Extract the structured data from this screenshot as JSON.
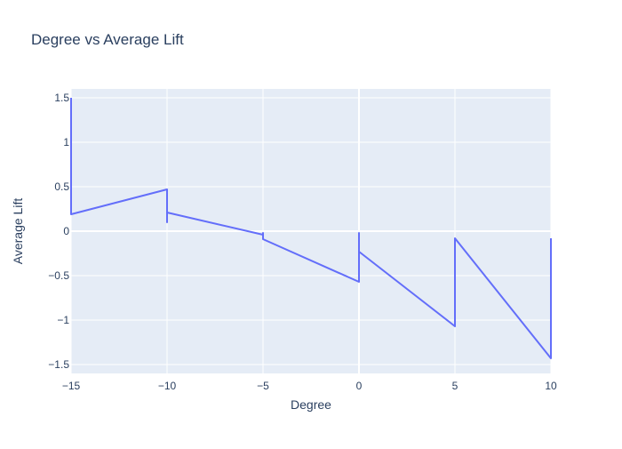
{
  "chart_data": {
    "type": "line",
    "title": "Degree vs Average Lift",
    "xlabel": "Degree",
    "ylabel": "Average Lift",
    "xlim": [
      -15,
      10
    ],
    "ylim": [
      -1.6,
      1.6
    ],
    "xticks": [
      -15,
      -10,
      -5,
      0,
      5,
      10
    ],
    "xtick_labels": [
      "−15",
      "−10",
      "−5",
      "0",
      "5",
      "10"
    ],
    "yticks": [
      -1.5,
      -1,
      -0.5,
      0,
      0.5,
      1,
      1.5
    ],
    "ytick_labels": [
      "−1.5",
      "−1",
      "−0.5",
      "0",
      "0.5",
      "1",
      "1.5"
    ],
    "grid": true,
    "series": [
      {
        "color": "#636efa",
        "x": [
          -15,
          -15,
          -10,
          -10,
          -10,
          -5,
          -5,
          -5,
          0,
          0,
          0,
          5,
          5,
          10,
          10
        ],
        "y": [
          1.5,
          0.19,
          0.47,
          0.1,
          0.21,
          -0.04,
          -0.02,
          -0.09,
          -0.57,
          -0.02,
          -0.23,
          -1.07,
          -0.08,
          -1.43,
          -0.08
        ]
      }
    ]
  }
}
